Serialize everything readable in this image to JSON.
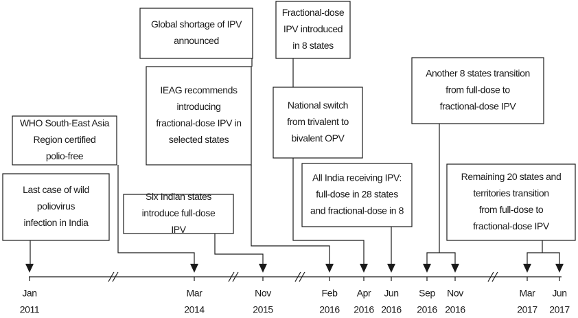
{
  "timeline": {
    "events": [
      {
        "lines": [
          "Last case of wild",
          "poliovirus",
          "infection in India"
        ]
      },
      {
        "lines": [
          "WHO South-East Asia",
          "Region certified",
          "polio-free"
        ]
      },
      {
        "lines": [
          "Six Indian states",
          "introduce full-dose",
          "IPV"
        ]
      },
      {
        "lines": [
          "Global shortage of IPV",
          "announced"
        ]
      },
      {
        "lines": [
          "IEAG recommends",
          "introducing",
          "fractional-dose IPV in",
          "selected states"
        ]
      },
      {
        "lines": [
          "Fractional-dose",
          "IPV introduced",
          "in 8 states"
        ]
      },
      {
        "lines": [
          "National switch",
          "from trivalent to",
          "bivalent OPV"
        ]
      },
      {
        "lines": [
          "All India receiving IPV:",
          "full-dose in 28 states",
          "and fractional-dose in 8"
        ]
      },
      {
        "lines": [
          "Another 8 states transition",
          "from full-dose to",
          "fractional-dose IPV"
        ]
      },
      {
        "lines": [
          "Remaining 20 states and",
          "territories transition",
          "from full-dose to",
          "fractional-dose IPV"
        ]
      }
    ],
    "dates": [
      {
        "month": "Jan",
        "year": "2011"
      },
      {
        "month": "Mar",
        "year": "2014"
      },
      {
        "month": "Nov",
        "year": "2015"
      },
      {
        "month": "Feb",
        "year": "2016"
      },
      {
        "month": "Apr",
        "year": "2016"
      },
      {
        "month": "Jun",
        "year": "2016"
      },
      {
        "month": "Sep",
        "year": "2016"
      },
      {
        "month": "Nov",
        "year": "2016"
      },
      {
        "month": "Mar",
        "year": "2017"
      },
      {
        "month": "Jun",
        "year": "2017"
      }
    ]
  }
}
